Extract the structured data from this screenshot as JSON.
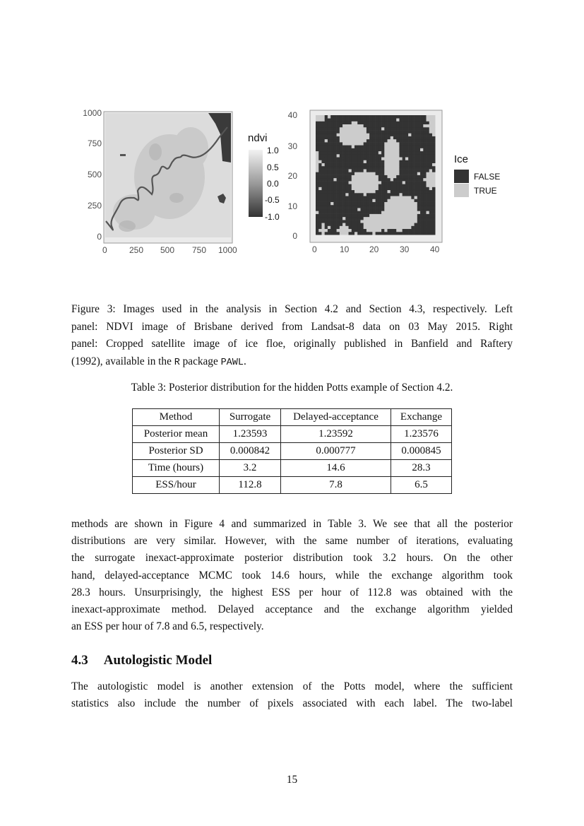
{
  "figure": {
    "left_panel": {
      "y_ticks": [
        "1000",
        "750",
        "500",
        "250",
        "0"
      ],
      "x_ticks": [
        "0",
        "250",
        "500",
        "750",
        "1000"
      ],
      "legend_title": "ndvi",
      "legend_ticks": [
        "1.0",
        "0.5",
        "0.0",
        "-0.5",
        "-1.0"
      ]
    },
    "right_panel": {
      "y_ticks": [
        "40",
        "30",
        "20",
        "10",
        "0"
      ],
      "x_ticks": [
        "0",
        "10",
        "20",
        "30",
        "40"
      ],
      "legend_title": "Ice",
      "legend_items": [
        {
          "label": "FALSE",
          "color": "#333333"
        },
        {
          "label": "TRUE",
          "color": "#cccccc"
        }
      ]
    },
    "caption_lines": [
      "Figure 3: Images used in the analysis in Section 4.2 and Section 4.3, respectively. Left",
      "panel: NDVI image of Brisbane derived from Landsat-8 data on 03 May 2015. Right",
      "panel: Cropped satellite image of ice floe, originally published in Banfield and Raftery"
    ],
    "caption_last_pre": "(1992), available in the ",
    "caption_code1": "R",
    "caption_mid": " package ",
    "caption_code2": "PAWL",
    "caption_end": "."
  },
  "table": {
    "caption": "Table 3: Posterior distribution for the hidden Potts example of Section 4.2.",
    "headers": [
      "Method",
      "Surrogate",
      "Delayed-acceptance",
      "Exchange"
    ],
    "rows": [
      [
        "Posterior mean",
        "1.23593",
        "1.23592",
        "1.23576"
      ],
      [
        "Posterior SD",
        "0.000842",
        "0.000777",
        "0.000845"
      ],
      [
        "Time (hours)",
        "3.2",
        "14.6",
        "28.3"
      ],
      [
        "ESS/hour",
        "112.8",
        "7.8",
        "6.5"
      ]
    ]
  },
  "paragraph1": [
    "methods are shown in Figure 4 and summarized in Table 3. We see that all the posterior",
    "distributions are very similar. However, with the same number of iterations, evaluating",
    "the surrogate inexact-approximate posterior distribution took 3.2 hours. On the other",
    "hand, delayed-acceptance MCMC took 14.6 hours, while the exchange algorithm took",
    "28.3 hours. Unsurprisingly, the highest ESS per hour of 112.8 was obtained with the",
    "inexact-approximate method. Delayed acceptance and the exchange algorithm yielded",
    "an ESS per hour of 7.8 and 6.5, respectively."
  ],
  "section": {
    "number": "4.3",
    "title": "Autologistic Model"
  },
  "paragraph2": [
    "The autologistic model is another extension of the Potts model, where the sufficient",
    "statistics also include the number of pixels associated with each label. The two-label"
  ],
  "page_number": "15"
}
